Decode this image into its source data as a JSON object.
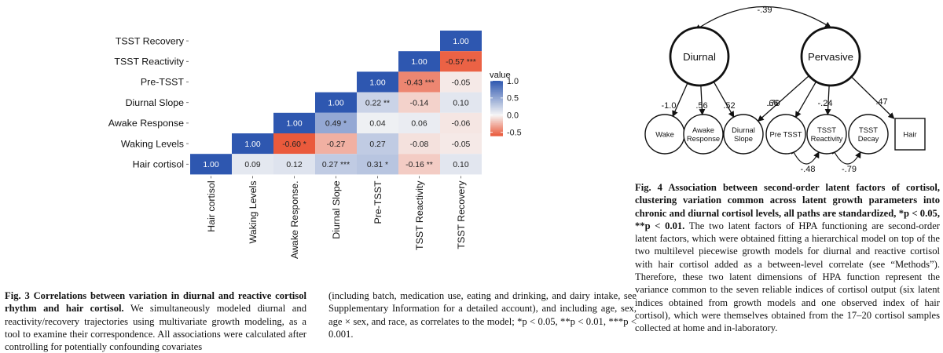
{
  "fig3": {
    "chart_data": {
      "type": "heatmap",
      "variables": [
        "Hair cortisol",
        "Waking Levels",
        "Awake Response.",
        "Diurnal Slope",
        "Pre-TSST",
        "TSST Reactivity",
        "TSST Recovery"
      ],
      "row_labels_top_to_bottom": [
        "TSST Recovery",
        "TSST Reactivity",
        "Pre-TSST",
        "Diurnal Slope",
        "Awake Response",
        "Waking Levels",
        "Hair cortisol"
      ],
      "cells": [
        {
          "row": "TSST Recovery",
          "col": "TSST Recovery",
          "value": 1.0,
          "label": "1.00"
        },
        {
          "row": "TSST Reactivity",
          "col": "TSST Reactivity",
          "value": 1.0,
          "label": "1.00"
        },
        {
          "row": "TSST Reactivity",
          "col": "TSST Recovery",
          "value": -0.57,
          "label": "-0.57 ***"
        },
        {
          "row": "Pre-TSST",
          "col": "Pre-TSST",
          "value": 1.0,
          "label": "1.00"
        },
        {
          "row": "Pre-TSST",
          "col": "TSST Reactivity",
          "value": -0.43,
          "label": "-0.43 ***"
        },
        {
          "row": "Pre-TSST",
          "col": "TSST Recovery",
          "value": -0.05,
          "label": "-0.05"
        },
        {
          "row": "Diurnal Slope",
          "col": "Diurnal Slope",
          "value": 1.0,
          "label": "1.00"
        },
        {
          "row": "Diurnal Slope",
          "col": "Pre-TSST",
          "value": 0.22,
          "label": "0.22 **"
        },
        {
          "row": "Diurnal Slope",
          "col": "TSST Reactivity",
          "value": -0.14,
          "label": "-0.14"
        },
        {
          "row": "Diurnal Slope",
          "col": "TSST Recovery",
          "value": 0.1,
          "label": "0.10"
        },
        {
          "row": "Awake Response",
          "col": "Awake Response.",
          "value": 1.0,
          "label": "1.00"
        },
        {
          "row": "Awake Response",
          "col": "Diurnal Slope",
          "value": 0.49,
          "label": "0.49 *"
        },
        {
          "row": "Awake Response",
          "col": "Pre-TSST",
          "value": 0.04,
          "label": "0.04"
        },
        {
          "row": "Awake Response",
          "col": "TSST Reactivity",
          "value": 0.06,
          "label": "0.06"
        },
        {
          "row": "Awake Response",
          "col": "TSST Recovery",
          "value": -0.06,
          "label": "-0.06"
        },
        {
          "row": "Waking Levels",
          "col": "Waking Levels",
          "value": 1.0,
          "label": "1.00"
        },
        {
          "row": "Waking Levels",
          "col": "Awake Response.",
          "value": -0.6,
          "label": "-0.60 *"
        },
        {
          "row": "Waking Levels",
          "col": "Diurnal Slope",
          "value": -0.27,
          "label": "-0.27"
        },
        {
          "row": "Waking Levels",
          "col": "Pre-TSST",
          "value": 0.27,
          "label": "0.27"
        },
        {
          "row": "Waking Levels",
          "col": "TSST Reactivity",
          "value": -0.08,
          "label": "-0.08"
        },
        {
          "row": "Waking Levels",
          "col": "TSST Recovery",
          "value": -0.05,
          "label": "-0.05"
        },
        {
          "row": "Hair cortisol",
          "col": "Hair cortisol",
          "value": 1.0,
          "label": "1.00"
        },
        {
          "row": "Hair cortisol",
          "col": "Waking Levels",
          "value": 0.09,
          "label": "0.09"
        },
        {
          "row": "Hair cortisol",
          "col": "Awake Response.",
          "value": 0.12,
          "label": "0.12"
        },
        {
          "row": "Hair cortisol",
          "col": "Diurnal Slope",
          "value": 0.27,
          "label": "0.27 ***"
        },
        {
          "row": "Hair cortisol",
          "col": "Pre-TSST",
          "value": 0.31,
          "label": "0.31 *"
        },
        {
          "row": "Hair cortisol",
          "col": "TSST Reactivity",
          "value": -0.16,
          "label": "-0.16 **"
        },
        {
          "row": "Hair cortisol",
          "col": "TSST Recovery",
          "value": 0.1,
          "label": "0.10"
        }
      ],
      "legend": {
        "title": "value",
        "ticks": [
          1.0,
          0.5,
          0.0,
          -0.5
        ],
        "tick_labels": [
          "1.0",
          "0.5",
          "0.0",
          "-0.5"
        ],
        "range": [
          -0.6,
          1.0
        ],
        "placement": "right"
      },
      "colors": {
        "positive": "#2e57b0",
        "neutral": "#f6f6f6",
        "negative": "#ea5a3c"
      },
      "grid": false
    },
    "caption": {
      "label": "Fig. 3 Correlations between variation in diurnal and reactive cortisol rhythm and hair cortisol.",
      "body": " We simultaneously modeled diurnal and reactivity/recovery trajectories using multivariate growth modeling, as a tool to examine their correspondence. All associations were calculated after controlling for potentially confounding covariates",
      "continuation": "(including batch, medication use, eating and drinking, and dairy intake, see Supplementary Information for a detailed account), and including age, sex, age × sex, and race, as correlates to the model; *p < 0.05, **p < 0.01, ***p < 0.001."
    }
  },
  "fig4": {
    "diagram": {
      "factors": [
        {
          "id": "diurnal",
          "label": "Diurnal"
        },
        {
          "id": "pervasive",
          "label": "Pervasive"
        }
      ],
      "factor_correlation": "-.39",
      "indicators": [
        {
          "id": "wake",
          "label": [
            "Wake"
          ],
          "shape": "circle"
        },
        {
          "id": "awake",
          "label": [
            "Awake",
            "Response"
          ],
          "shape": "circle"
        },
        {
          "id": "dslope",
          "label": [
            "Diurnal",
            "Slope"
          ],
          "shape": "circle"
        },
        {
          "id": "pretsst",
          "label": [
            "Pre TSST"
          ],
          "shape": "circle"
        },
        {
          "id": "tsstreact",
          "label": [
            "TSST",
            "Reactivity"
          ],
          "shape": "circle"
        },
        {
          "id": "tsstdecay",
          "label": [
            "TSST",
            "Decay"
          ],
          "shape": "circle"
        },
        {
          "id": "hair",
          "label": [
            "Hair"
          ],
          "shape": "box"
        }
      ],
      "loadings": [
        {
          "from": "diurnal",
          "to": "wake",
          "label": "-1.0"
        },
        {
          "from": "diurnal",
          "to": "awake",
          "label": ".56"
        },
        {
          "from": "diurnal",
          "to": "dslope",
          "label": ".52"
        },
        {
          "from": "pervasive",
          "to": "dslope",
          "label": ".70"
        },
        {
          "from": "pervasive",
          "to": "pretsst",
          "label": ".66"
        },
        {
          "from": "pervasive",
          "to": "tsstreact",
          "label": "-.24"
        },
        {
          "from": "pervasive",
          "to": "hair",
          "label": ".47"
        }
      ],
      "residual_correlations": [
        {
          "between": [
            "pretsst",
            "tsstreact"
          ],
          "label": "-.48"
        },
        {
          "between": [
            "tsstreact",
            "tsstdecay"
          ],
          "label": "-.79"
        }
      ]
    },
    "caption": {
      "label": "Fig. 4 Association between second-order latent factors of cortisol, clustering variation common across latent growth parameters into chronic and diurnal cortisol levels, all paths are standardized, *p < 0.05, **p < 0.01.",
      "body": " The two latent factors of HPA functioning are second-order latent factors, which were obtained fitting a hierarchical model on top of the two multilevel piecewise growth models for diurnal and reactive cortisol with hair cortisol added as a between-level correlate (see “Methods”). Therefore, these two latent dimensions of HPA function represent the variance common to the seven reliable indices of cortisol output (six latent indices obtained from growth models and one observed index of hair cortisol), which were themselves obtained from the 17–20 cortisol samples collected at home and in-laboratory."
    }
  }
}
